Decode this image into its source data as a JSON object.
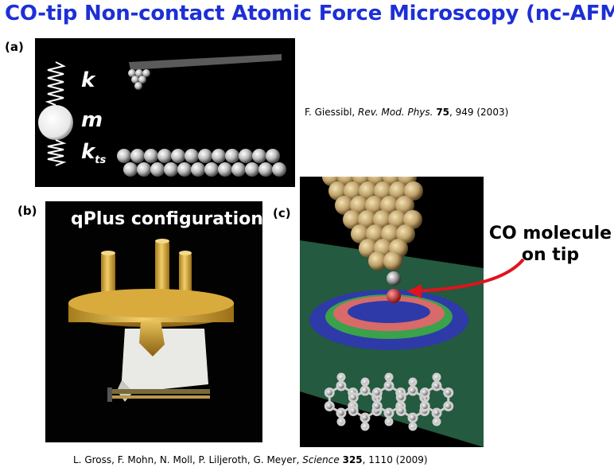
{
  "slide": {
    "title": "CO-tip Non-contact Atomic Force Microscopy (nc-AFM)"
  },
  "panels": {
    "a": {
      "label": "(a)",
      "symbols": {
        "k": "k",
        "m": "m",
        "kts_base": "k",
        "kts_sub": "ts"
      },
      "citation": {
        "authors": "F. Giessibl, ",
        "journal": "Rev. Mod. Phys.",
        "volume": "75",
        "pages": ", 949 (2003)"
      }
    },
    "b": {
      "label": "(b)",
      "caption": "qPlus configuration"
    },
    "c": {
      "label": "(c)",
      "annotation_line1": "CO molecule",
      "annotation_line2": "on tip"
    }
  },
  "bottom_citation": {
    "authors": "L. Gross, F. Mohn,  N. Moll, P. Liljeroth, G. Meyer, ",
    "journal": "Science",
    "volume": "325",
    "pages": ", 1110 (2009)"
  },
  "colors": {
    "title": "#1d2fd6",
    "arrow": "#e0131d"
  }
}
